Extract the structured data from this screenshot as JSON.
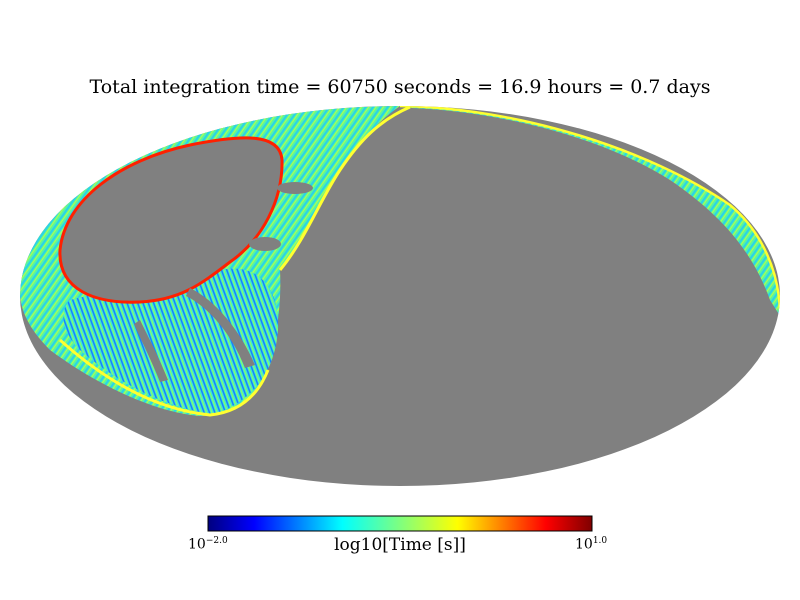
{
  "chart_data": {
    "type": "heatmap",
    "projection": "mollweide",
    "title": "Total integration time = 60750 seconds = 16.9 hours = 0.7 days",
    "colorbar": {
      "label": "log10[Time [s]]",
      "min_base": "10",
      "min_exp": "−2.0",
      "max_base": "10",
      "max_exp": "1.0",
      "vmin": -2.0,
      "vmax": 1.0,
      "colormap": "jet"
    },
    "unobserved_color": "#808080",
    "colormap_stops": [
      "#00007f",
      "#0000ff",
      "#007fff",
      "#00ffff",
      "#7fff7f",
      "#ffff00",
      "#ff7f00",
      "#ff0000",
      "#7f0000"
    ]
  }
}
